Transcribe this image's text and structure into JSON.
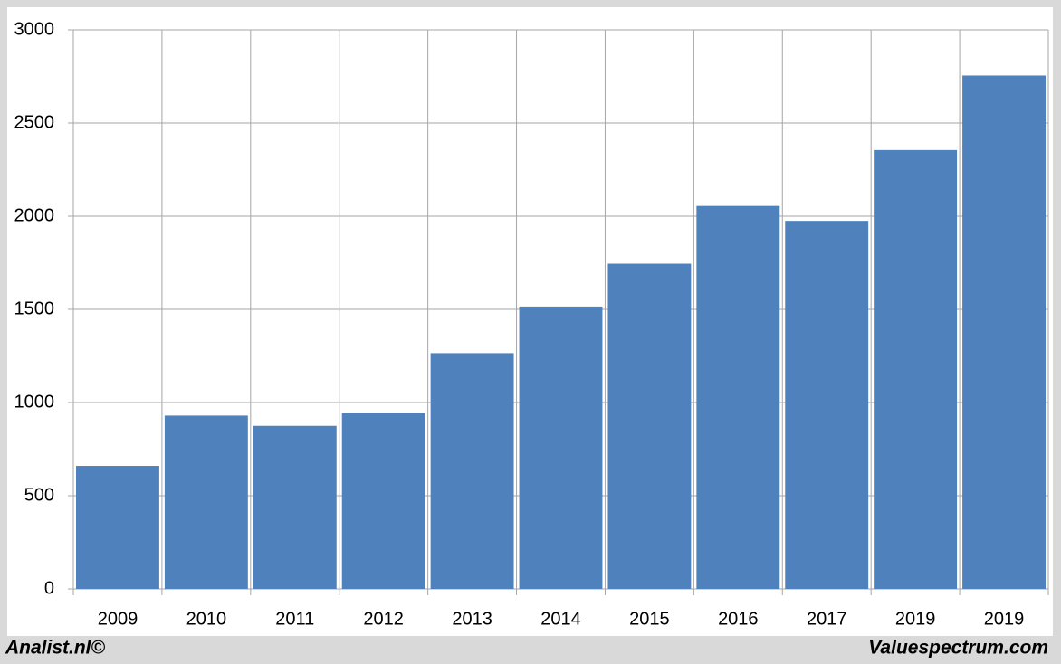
{
  "chart_data": {
    "type": "bar",
    "categories": [
      "2009",
      "2010",
      "2011",
      "2012",
      "2013",
      "2014",
      "2015",
      "2016",
      "2017",
      "2019",
      "2019"
    ],
    "values": [
      660,
      930,
      875,
      945,
      1265,
      1515,
      1745,
      2055,
      1975,
      2355,
      2755
    ],
    "color": "#4f81bd",
    "ylim": [
      0,
      3000
    ],
    "yticks": [
      0,
      500,
      1000,
      1500,
      2000,
      2500,
      3000
    ],
    "grid": true,
    "footer_left": "Analist.nl©",
    "footer_right": "Valuespectrum.com"
  }
}
